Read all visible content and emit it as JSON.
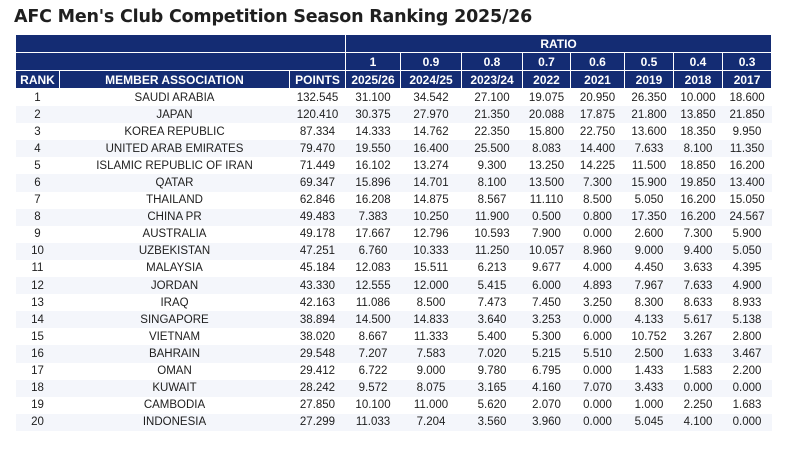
{
  "title": "AFC Men's Club Competition Season Ranking 2025/26",
  "header": {
    "ratio_label": "RATIO",
    "ratios": [
      "1",
      "0.9",
      "0.8",
      "0.7",
      "0.6",
      "0.5",
      "0.4",
      "0.3"
    ],
    "rank_label": "RANK",
    "association_label": "MEMBER ASSOCIATION",
    "points_label": "POINTS",
    "seasons": [
      "2025/26",
      "2024/25",
      "2023/24",
      "2022",
      "2021",
      "2019",
      "2018",
      "2017"
    ]
  },
  "rows": [
    {
      "rank": "1",
      "association": "SAUDI ARABIA",
      "points": "132.545",
      "values": [
        "31.100",
        "34.542",
        "27.100",
        "19.075",
        "20.950",
        "26.350",
        "10.000",
        "18.600"
      ]
    },
    {
      "rank": "2",
      "association": "JAPAN",
      "points": "120.410",
      "values": [
        "30.375",
        "27.970",
        "21.350",
        "20.088",
        "17.875",
        "21.800",
        "13.850",
        "21.850"
      ]
    },
    {
      "rank": "3",
      "association": "KOREA REPUBLIC",
      "points": "87.334",
      "values": [
        "14.333",
        "14.762",
        "22.350",
        "15.800",
        "22.750",
        "13.600",
        "18.350",
        "9.950"
      ]
    },
    {
      "rank": "4",
      "association": "UNITED ARAB EMIRATES",
      "points": "79.470",
      "values": [
        "19.550",
        "16.400",
        "25.500",
        "8.083",
        "14.400",
        "7.633",
        "8.100",
        "11.350"
      ]
    },
    {
      "rank": "5",
      "association": "ISLAMIC REPUBLIC OF IRAN",
      "points": "71.449",
      "values": [
        "16.102",
        "13.274",
        "9.300",
        "13.250",
        "14.225",
        "11.500",
        "18.850",
        "16.200"
      ]
    },
    {
      "rank": "6",
      "association": "QATAR",
      "points": "69.347",
      "values": [
        "15.896",
        "14.701",
        "8.100",
        "13.500",
        "7.300",
        "15.900",
        "19.850",
        "13.400"
      ]
    },
    {
      "rank": "7",
      "association": "THAILAND",
      "points": "62.846",
      "values": [
        "16.208",
        "14.875",
        "8.567",
        "11.110",
        "8.500",
        "5.050",
        "16.200",
        "15.050"
      ]
    },
    {
      "rank": "8",
      "association": "CHINA PR",
      "points": "49.483",
      "values": [
        "7.383",
        "10.250",
        "11.900",
        "0.500",
        "0.800",
        "17.350",
        "16.200",
        "24.567"
      ]
    },
    {
      "rank": "9",
      "association": "AUSTRALIA",
      "points": "49.178",
      "values": [
        "17.667",
        "12.796",
        "10.593",
        "7.900",
        "0.000",
        "2.600",
        "7.300",
        "5.900"
      ]
    },
    {
      "rank": "10",
      "association": "UZBEKISTAN",
      "points": "47.251",
      "values": [
        "6.760",
        "10.333",
        "11.250",
        "10.057",
        "8.960",
        "9.000",
        "9.400",
        "5.050"
      ]
    },
    {
      "rank": "11",
      "association": "MALAYSIA",
      "points": "45.184",
      "values": [
        "12.083",
        "15.511",
        "6.213",
        "9.677",
        "4.000",
        "4.450",
        "3.633",
        "4.395"
      ]
    },
    {
      "rank": "12",
      "association": "JORDAN",
      "points": "43.330",
      "values": [
        "12.555",
        "12.000",
        "5.415",
        "6.000",
        "4.893",
        "7.967",
        "7.633",
        "4.900"
      ]
    },
    {
      "rank": "13",
      "association": "IRAQ",
      "points": "42.163",
      "values": [
        "11.086",
        "8.500",
        "7.473",
        "7.450",
        "3.250",
        "8.300",
        "8.633",
        "8.933"
      ]
    },
    {
      "rank": "14",
      "association": "SINGAPORE",
      "points": "38.894",
      "values": [
        "14.500",
        "14.833",
        "3.640",
        "3.253",
        "0.000",
        "4.133",
        "5.617",
        "5.138"
      ]
    },
    {
      "rank": "15",
      "association": "VIETNAM",
      "points": "38.020",
      "values": [
        "8.667",
        "11.333",
        "5.400",
        "5.300",
        "6.000",
        "10.752",
        "3.267",
        "2.800"
      ]
    },
    {
      "rank": "16",
      "association": "BAHRAIN",
      "points": "29.548",
      "values": [
        "7.207",
        "7.583",
        "7.020",
        "5.215",
        "5.510",
        "2.500",
        "1.633",
        "3.467"
      ]
    },
    {
      "rank": "17",
      "association": "OMAN",
      "points": "29.412",
      "values": [
        "6.722",
        "9.000",
        "9.780",
        "6.795",
        "0.000",
        "1.433",
        "1.583",
        "2.200"
      ]
    },
    {
      "rank": "18",
      "association": "KUWAIT",
      "points": "28.242",
      "values": [
        "9.572",
        "8.075",
        "3.165",
        "4.160",
        "7.070",
        "3.433",
        "0.000",
        "0.000"
      ]
    },
    {
      "rank": "19",
      "association": "CAMBODIA",
      "points": "27.850",
      "values": [
        "10.100",
        "11.000",
        "5.620",
        "2.070",
        "0.000",
        "1.000",
        "2.250",
        "1.683"
      ]
    },
    {
      "rank": "20",
      "association": "INDONESIA",
      "points": "27.299",
      "values": [
        "11.033",
        "7.204",
        "3.560",
        "3.960",
        "0.000",
        "5.045",
        "4.100",
        "0.000"
      ]
    }
  ],
  "colors": {
    "header_bg": "#142c73",
    "header_text": "#ffffff",
    "row_alt_bg": "#f4f6fb"
  }
}
